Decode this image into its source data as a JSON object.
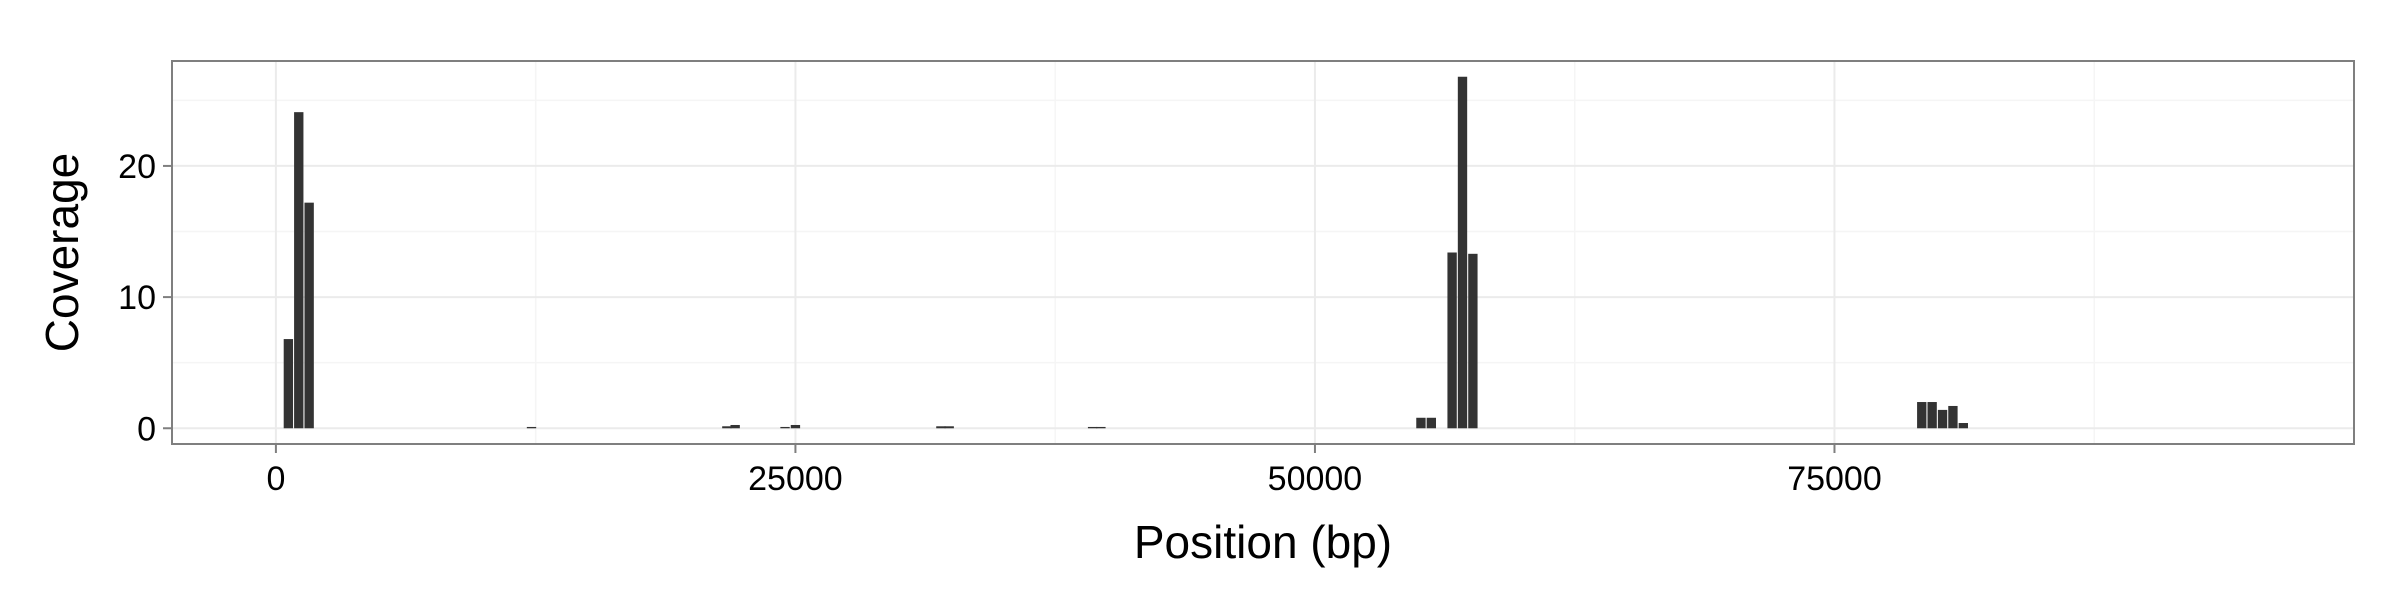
{
  "chart_data": {
    "type": "bar",
    "title": "",
    "xlabel": "Position (bp)",
    "ylabel": "Coverage",
    "xlim": [
      -5000,
      100000
    ],
    "ylim": [
      -1.2,
      28.0
    ],
    "x_ticks": [
      0,
      25000,
      50000,
      75000
    ],
    "x_tick_labels": [
      "0",
      "25000",
      "50000",
      "75000"
    ],
    "y_ticks": [
      0,
      10,
      20
    ],
    "y_tick_labels": [
      "0",
      "10",
      "20"
    ],
    "grid": true,
    "legend": "none",
    "bar_width": 450,
    "bar_color": "#333333",
    "x": [
      600,
      1100,
      1600,
      12300,
      21700,
      22100,
      24500,
      25000,
      32000,
      32400,
      39300,
      39700,
      55100,
      55600,
      56600,
      57100,
      57600,
      79200,
      79700,
      80200,
      80700,
      81200
    ],
    "values": [
      6.8,
      24.1,
      17.2,
      0.1,
      0.15,
      0.25,
      0.1,
      0.25,
      0.15,
      0.15,
      0.1,
      0.1,
      0.8,
      0.8,
      13.4,
      26.8,
      13.3,
      2.0,
      2.0,
      1.4,
      1.7,
      0.4
    ]
  }
}
